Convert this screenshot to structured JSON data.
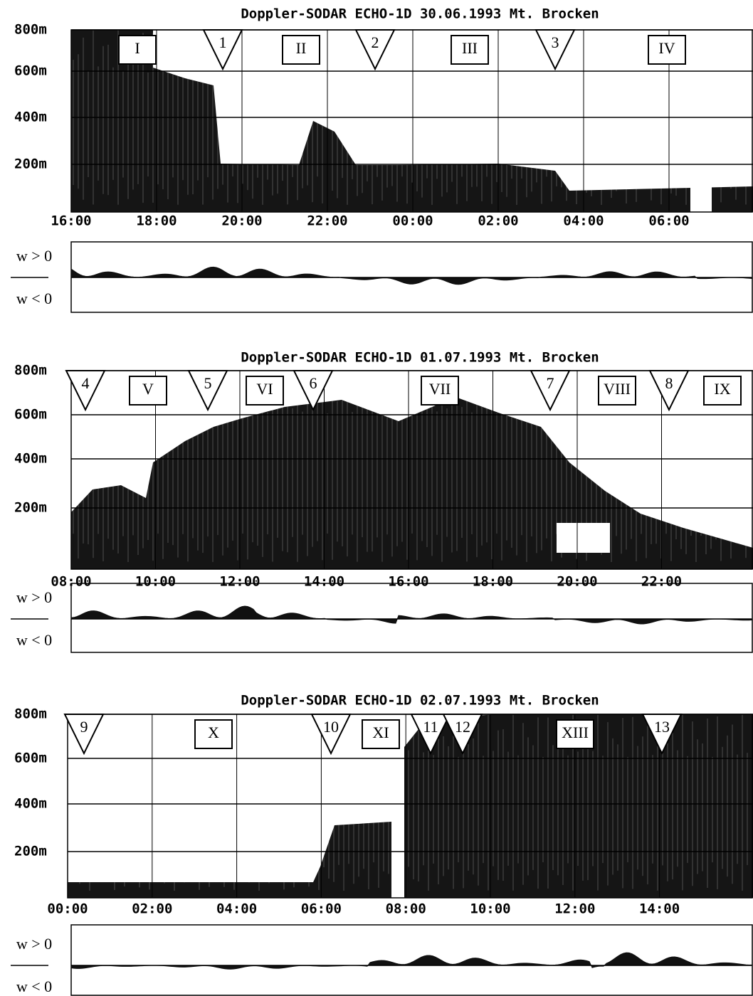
{
  "panels": [
    {
      "title": "Doppler-SODAR ECHO-1D  30.06.1993 Mt. Brocken",
      "y_labels": [
        "800m",
        "600m",
        "400m",
        "200m"
      ],
      "x_labels": [
        "16:00",
        "18:00",
        "20:00",
        "22:00",
        "00:00",
        "02:00",
        "04:00",
        "06:00"
      ],
      "markers": [
        {
          "label": "I",
          "shape": "box"
        },
        {
          "label": "1",
          "shape": "triangle"
        },
        {
          "label": "II",
          "shape": "box"
        },
        {
          "label": "2",
          "shape": "triangle"
        },
        {
          "label": "III",
          "shape": "box"
        },
        {
          "label": "3",
          "shape": "triangle"
        },
        {
          "label": "IV",
          "shape": "box"
        }
      ],
      "w_labels": [
        "w > 0",
        "w < 0"
      ]
    },
    {
      "title": "Doppler-SODAR ECHO-1D  01.07.1993 Mt. Brocken",
      "y_labels": [
        "800m",
        "600m",
        "400m",
        "200m"
      ],
      "x_labels": [
        "08:00",
        "10:00",
        "12:00",
        "14:00",
        "16:00",
        "18:00",
        "20:00",
        "22:00"
      ],
      "markers": [
        {
          "label": "4",
          "shape": "triangle"
        },
        {
          "label": "V",
          "shape": "box"
        },
        {
          "label": "5",
          "shape": "triangle"
        },
        {
          "label": "VI",
          "shape": "box"
        },
        {
          "label": "6",
          "shape": "triangle"
        },
        {
          "label": "VII",
          "shape": "box"
        },
        {
          "label": "7",
          "shape": "triangle"
        },
        {
          "label": "VIII",
          "shape": "box"
        },
        {
          "label": "8",
          "shape": "triangle"
        },
        {
          "label": "IX",
          "shape": "box"
        }
      ],
      "w_labels": [
        "w > 0",
        "w < 0"
      ]
    },
    {
      "title": "Doppler-SODAR ECHO-1D  02.07.1993 Mt. Brocken",
      "y_labels": [
        "800m",
        "600m",
        "400m",
        "200m"
      ],
      "x_labels": [
        "00:00",
        "02:00",
        "04:00",
        "06:00",
        "08:00",
        "10:00",
        "12:00",
        "14:00"
      ],
      "markers": [
        {
          "label": "9",
          "shape": "triangle"
        },
        {
          "label": "X",
          "shape": "box"
        },
        {
          "label": "10",
          "shape": "triangle"
        },
        {
          "label": "XI",
          "shape": "box"
        },
        {
          "label": "11",
          "shape": "triangle"
        },
        {
          "label": "12",
          "shape": "triangle"
        },
        {
          "label": "XIII",
          "shape": "box"
        },
        {
          "label": "13",
          "shape": "triangle"
        }
      ],
      "w_labels": [
        "w > 0",
        "w < 0"
      ]
    }
  ]
}
